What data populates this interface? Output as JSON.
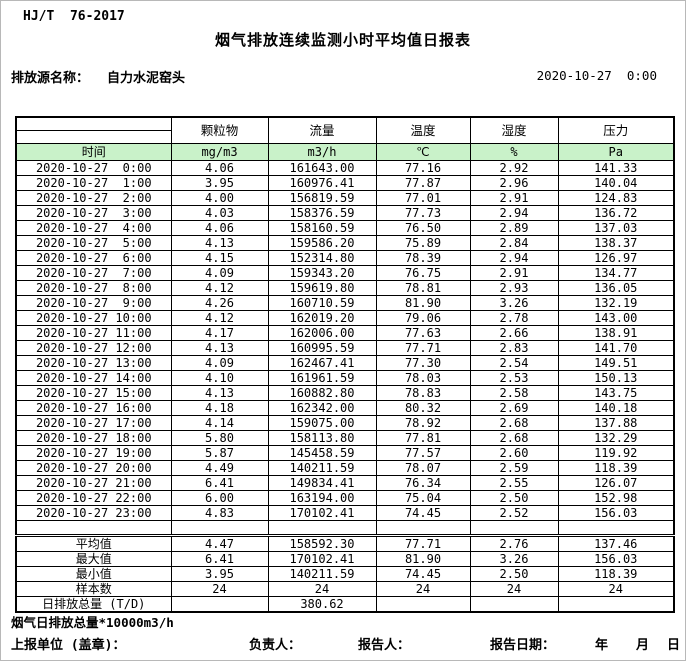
{
  "page": {
    "standard": "HJ/T  76-2017",
    "title": "烟气排放连续监测小时平均值日报表",
    "source_label": "排放源名称：",
    "source_name": "自力水泥窑头",
    "datetime": "2020-10-27  0:00"
  },
  "colors": {
    "header_green": "#c9f2c9",
    "border": "#000000"
  },
  "table": {
    "time_header": "时间",
    "columns": [
      "颗粒物",
      "流量",
      "温度",
      "湿度",
      "压力"
    ],
    "units": [
      "mg/m3",
      "m3/h",
      "℃",
      "%",
      "Pa"
    ],
    "rows": [
      {
        "time": "2020-10-27  0:00",
        "values": [
          "4.06",
          "161643.00",
          "77.16",
          "2.92",
          "141.33"
        ]
      },
      {
        "time": "2020-10-27  1:00",
        "values": [
          "3.95",
          "160976.41",
          "77.87",
          "2.96",
          "140.04"
        ]
      },
      {
        "time": "2020-10-27  2:00",
        "values": [
          "4.00",
          "156819.59",
          "77.01",
          "2.91",
          "124.83"
        ]
      },
      {
        "time": "2020-10-27  3:00",
        "values": [
          "4.03",
          "158376.59",
          "77.73",
          "2.94",
          "136.72"
        ]
      },
      {
        "time": "2020-10-27  4:00",
        "values": [
          "4.06",
          "158160.59",
          "76.50",
          "2.89",
          "137.03"
        ]
      },
      {
        "time": "2020-10-27  5:00",
        "values": [
          "4.13",
          "159586.20",
          "75.89",
          "2.84",
          "138.37"
        ]
      },
      {
        "time": "2020-10-27  6:00",
        "values": [
          "4.15",
          "152314.80",
          "78.39",
          "2.94",
          "126.97"
        ]
      },
      {
        "time": "2020-10-27  7:00",
        "values": [
          "4.09",
          "159343.20",
          "76.75",
          "2.91",
          "134.77"
        ]
      },
      {
        "time": "2020-10-27  8:00",
        "values": [
          "4.12",
          "159619.80",
          "78.81",
          "2.93",
          "136.05"
        ]
      },
      {
        "time": "2020-10-27  9:00",
        "values": [
          "4.26",
          "160710.59",
          "81.90",
          "3.26",
          "132.19"
        ]
      },
      {
        "time": "2020-10-27 10:00",
        "values": [
          "4.12",
          "162019.20",
          "79.06",
          "2.78",
          "143.00"
        ]
      },
      {
        "time": "2020-10-27 11:00",
        "values": [
          "4.17",
          "162006.00",
          "77.63",
          "2.66",
          "138.91"
        ]
      },
      {
        "time": "2020-10-27 12:00",
        "values": [
          "4.13",
          "160995.59",
          "77.71",
          "2.83",
          "141.70"
        ]
      },
      {
        "time": "2020-10-27 13:00",
        "values": [
          "4.09",
          "162467.41",
          "77.30",
          "2.54",
          "149.51"
        ]
      },
      {
        "time": "2020-10-27 14:00",
        "values": [
          "4.10",
          "161961.59",
          "78.03",
          "2.53",
          "150.13"
        ]
      },
      {
        "time": "2020-10-27 15:00",
        "values": [
          "4.13",
          "160882.80",
          "78.83",
          "2.58",
          "143.75"
        ]
      },
      {
        "time": "2020-10-27 16:00",
        "values": [
          "4.18",
          "162342.00",
          "80.32",
          "2.69",
          "140.18"
        ]
      },
      {
        "time": "2020-10-27 17:00",
        "values": [
          "4.14",
          "159075.00",
          "78.92",
          "2.68",
          "137.88"
        ]
      },
      {
        "time": "2020-10-27 18:00",
        "values": [
          "5.80",
          "158113.80",
          "77.81",
          "2.68",
          "132.29"
        ]
      },
      {
        "time": "2020-10-27 19:00",
        "values": [
          "5.87",
          "145458.59",
          "77.57",
          "2.60",
          "119.92"
        ]
      },
      {
        "time": "2020-10-27 20:00",
        "values": [
          "4.49",
          "140211.59",
          "78.07",
          "2.59",
          "118.39"
        ]
      },
      {
        "time": "2020-10-27 21:00",
        "values": [
          "6.41",
          "149834.41",
          "76.34",
          "2.55",
          "126.07"
        ]
      },
      {
        "time": "2020-10-27 22:00",
        "values": [
          "6.00",
          "163194.00",
          "75.04",
          "2.50",
          "152.98"
        ]
      },
      {
        "time": "2020-10-27 23:00",
        "values": [
          "4.83",
          "170102.41",
          "74.45",
          "2.52",
          "156.03"
        ]
      }
    ],
    "summary": [
      {
        "label": "平均值",
        "values": [
          "4.47",
          "158592.30",
          "77.71",
          "2.76",
          "137.46"
        ]
      },
      {
        "label": "最大值",
        "values": [
          "6.41",
          "170102.41",
          "81.90",
          "3.26",
          "156.03"
        ]
      },
      {
        "label": "最小值",
        "values": [
          "3.95",
          "140211.59",
          "74.45",
          "2.50",
          "118.39"
        ]
      },
      {
        "label": "样本数",
        "values": [
          "24",
          "24",
          "24",
          "24",
          "24"
        ]
      },
      {
        "label": "日排放总量 (T/D)",
        "values": [
          "",
          "380.62",
          "",
          "",
          ""
        ]
      }
    ]
  },
  "footer": {
    "note": "烟气日排放总量*10000m3/h",
    "report_unit_label": "上报单位 (盖章)：",
    "responsible_label": "负责人：",
    "reporter_label": "报告人：",
    "report_date_label": "报告日期：",
    "year_label": "年",
    "month_label": "月",
    "day_label": "日"
  }
}
